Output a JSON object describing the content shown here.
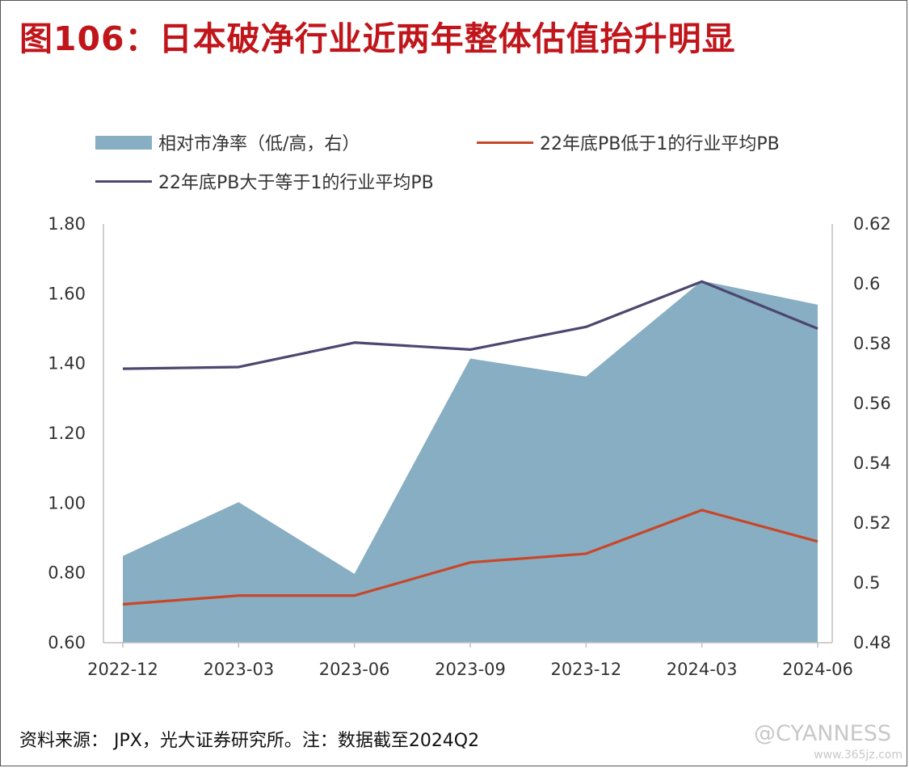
{
  "title": "图106：日本破净行业近两年整体估值抬升明显",
  "chart_data": {
    "type": "area+line",
    "categories": [
      "2022-12",
      "2023-03",
      "2023-06",
      "2023-09",
      "2023-12",
      "2024-03",
      "2024-06"
    ],
    "series": [
      {
        "name": "相对市净率（低/高，右）",
        "kind": "area",
        "axis": "right",
        "color": "#87aec2",
        "values": [
          0.509,
          0.527,
          0.503,
          0.575,
          0.569,
          0.601,
          0.593
        ]
      },
      {
        "name": "22年底PB低于1的行业平均PB",
        "kind": "line",
        "axis": "left",
        "color": "#c8472b",
        "values": [
          0.71,
          0.735,
          0.735,
          0.83,
          0.855,
          0.98,
          0.89
        ]
      },
      {
        "name": "22年底PB大于等于1的行业平均PB",
        "kind": "line",
        "axis": "left",
        "color": "#4d4770",
        "values": [
          1.385,
          1.39,
          1.46,
          1.44,
          1.505,
          1.635,
          1.5
        ]
      }
    ],
    "left_axis": {
      "ylim": [
        0.6,
        1.8
      ],
      "ticks": [
        "0.60",
        "0.80",
        "1.00",
        "1.20",
        "1.40",
        "1.60",
        "1.80"
      ]
    },
    "right_axis": {
      "ylim": [
        0.48,
        0.62
      ],
      "ticks": [
        "0.48",
        "0.5",
        "0.52",
        "0.54",
        "0.56",
        "0.58",
        "0.6",
        "0.62"
      ]
    },
    "legend_position": "top",
    "grid": false
  },
  "source": "资料来源： JPX，光大证券研究所。注：数据截至2024Q2",
  "watermark": "@CYANNESS",
  "site": "www.365jz.com"
}
